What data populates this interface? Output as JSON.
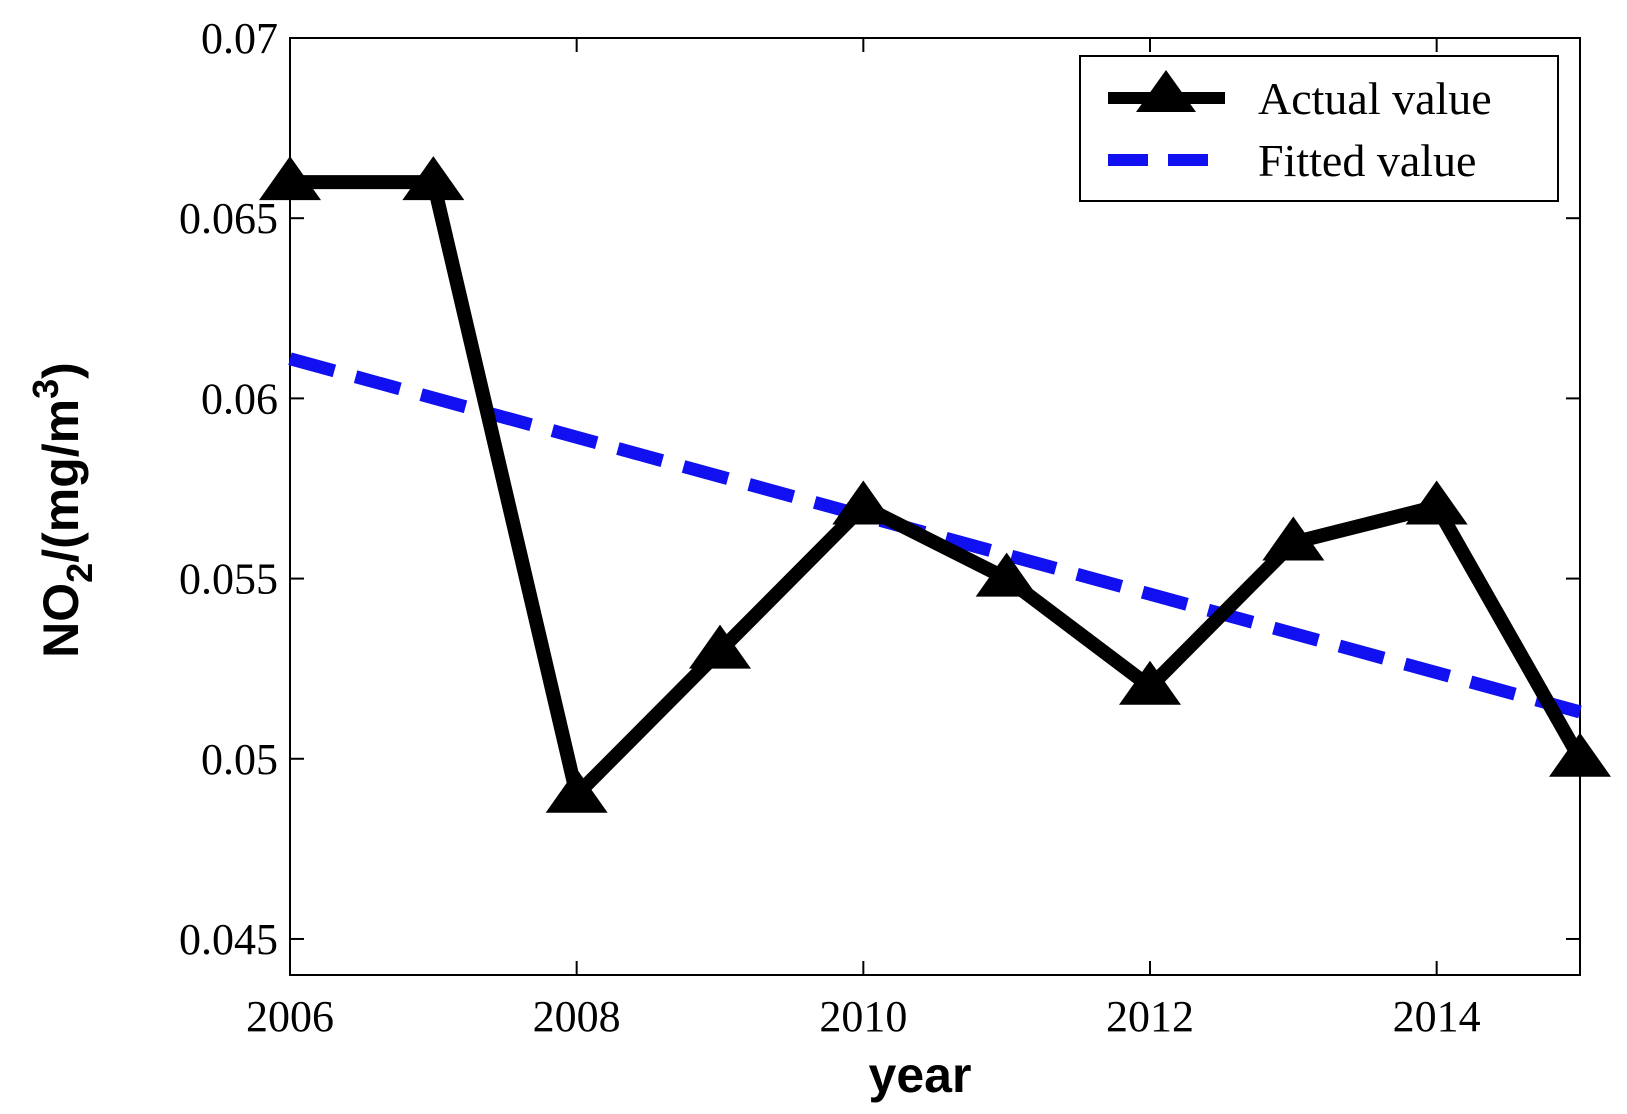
{
  "chart_data": {
    "type": "line",
    "title": "",
    "xlabel": "year",
    "ylabel_parts": {
      "main": "NO",
      "sub": "2",
      "unit": "/(mg/m",
      "sup": "3",
      "close": ")"
    },
    "xlim": [
      2006,
      2015
    ],
    "ylim": [
      0.044,
      0.07
    ],
    "xticks": [
      2006,
      2008,
      2010,
      2012,
      2014
    ],
    "xtick_labels": [
      "2006",
      "2008",
      "2010",
      "2012",
      "2014"
    ],
    "yticks": [
      0.045,
      0.05,
      0.055,
      0.06,
      0.065,
      0.07
    ],
    "ytick_labels": [
      "0.045",
      "0.05",
      "0.055",
      "0.06",
      "0.065",
      "0.07"
    ],
    "grid": false,
    "legend_position": "top-right",
    "series": [
      {
        "name": "Actual value",
        "style": "solid",
        "marker": "triangle",
        "color": "#000000",
        "x": [
          2006,
          2007,
          2008,
          2009,
          2010,
          2011,
          2012,
          2013,
          2014,
          2015
        ],
        "y": [
          0.066,
          0.066,
          0.049,
          0.053,
          0.057,
          0.055,
          0.052,
          0.056,
          0.057,
          0.05
        ]
      },
      {
        "name": "Fitted value",
        "style": "dashed",
        "marker": "none",
        "color": "#1010f0",
        "x": [
          2006,
          2015
        ],
        "y": [
          0.0611,
          0.0513
        ]
      }
    ]
  }
}
